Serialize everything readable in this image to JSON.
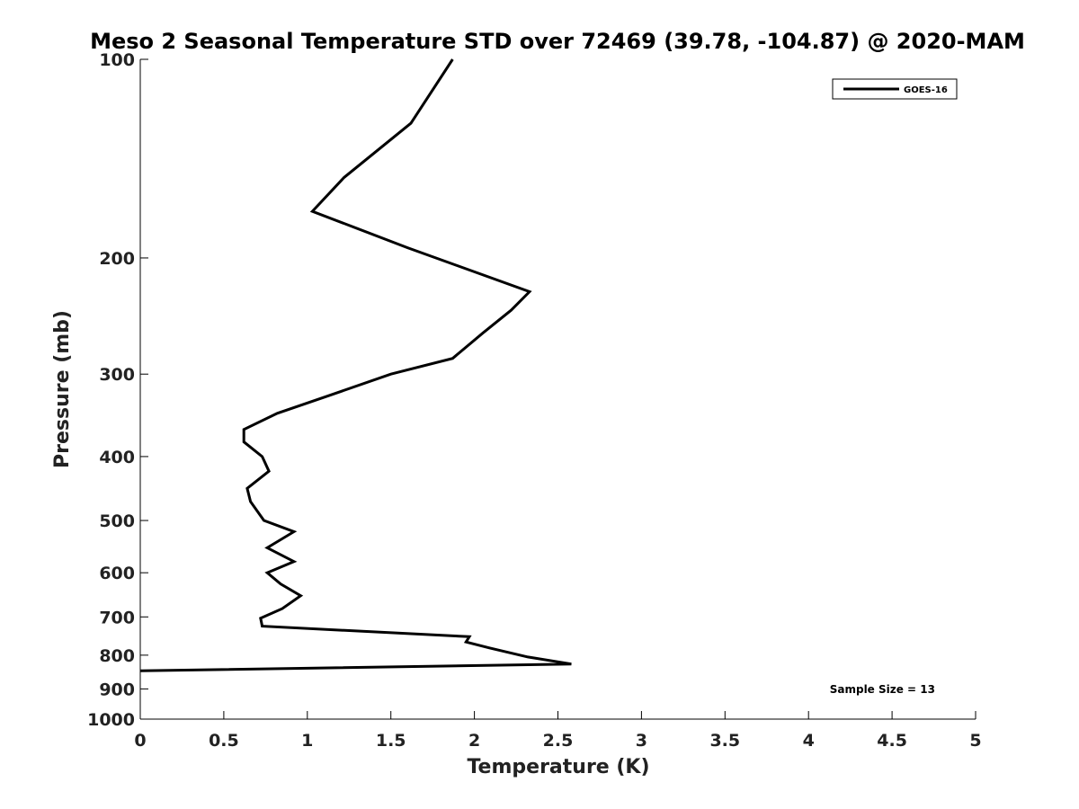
{
  "chart_data": {
    "type": "line",
    "title": "Meso 2 Seasonal Temperature STD over 72469 (39.78, -104.87) @ 2020-MAM",
    "xlabel": "Temperature (K)",
    "ylabel": "Pressure (mb)",
    "xlim": [
      0,
      5
    ],
    "ylim": [
      1000,
      100
    ],
    "yscale": "log",
    "x_ticks": [
      "0",
      "0.5",
      "1",
      "1.5",
      "2",
      "2.5",
      "3",
      "3.5",
      "4",
      "4.5",
      "5"
    ],
    "y_ticks": [
      "100",
      "200",
      "300",
      "400",
      "500",
      "600",
      "700",
      "800",
      "900",
      "1000"
    ],
    "grid": false,
    "legend_position": "top-right",
    "annotation": "Sample Size = 13",
    "series": [
      {
        "name": "GOES-16",
        "color": "#000000",
        "points": [
          {
            "x": 1.87,
            "p": 100
          },
          {
            "x": 1.62,
            "p": 125
          },
          {
            "x": 1.22,
            "p": 151
          },
          {
            "x": 1.03,
            "p": 170
          },
          {
            "x": 1.6,
            "p": 193
          },
          {
            "x": 1.77,
            "p": 200
          },
          {
            "x": 2.33,
            "p": 225
          },
          {
            "x": 2.22,
            "p": 240
          },
          {
            "x": 2.05,
            "p": 260
          },
          {
            "x": 1.87,
            "p": 284
          },
          {
            "x": 1.5,
            "p": 300
          },
          {
            "x": 1.12,
            "p": 324
          },
          {
            "x": 0.82,
            "p": 344
          },
          {
            "x": 0.62,
            "p": 364
          },
          {
            "x": 0.62,
            "p": 380
          },
          {
            "x": 0.73,
            "p": 400
          },
          {
            "x": 0.77,
            "p": 421
          },
          {
            "x": 0.64,
            "p": 447
          },
          {
            "x": 0.66,
            "p": 468
          },
          {
            "x": 0.74,
            "p": 500
          },
          {
            "x": 0.92,
            "p": 520
          },
          {
            "x": 0.76,
            "p": 550
          },
          {
            "x": 0.92,
            "p": 577
          },
          {
            "x": 0.76,
            "p": 600
          },
          {
            "x": 0.84,
            "p": 624
          },
          {
            "x": 0.96,
            "p": 650
          },
          {
            "x": 0.85,
            "p": 680
          },
          {
            "x": 0.72,
            "p": 703
          },
          {
            "x": 0.73,
            "p": 723
          },
          {
            "x": 1.97,
            "p": 750
          },
          {
            "x": 1.95,
            "p": 764
          },
          {
            "x": 2.09,
            "p": 780
          },
          {
            "x": 2.32,
            "p": 805
          },
          {
            "x": 2.58,
            "p": 825
          },
          {
            "x": 0.0,
            "p": 845
          }
        ]
      }
    ]
  }
}
